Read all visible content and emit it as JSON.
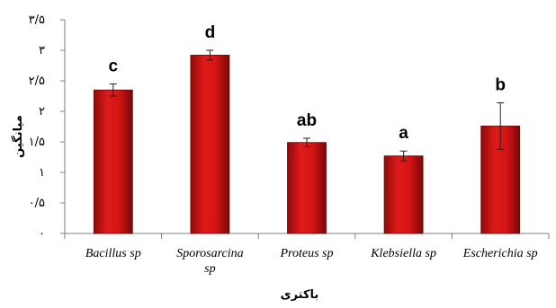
{
  "chart_data": {
    "type": "bar",
    "title": "",
    "xlabel": "باکتری",
    "ylabel": "میانگین",
    "ylim": [
      0,
      3.5
    ],
    "ytick_values": [
      0,
      0.5,
      1,
      1.5,
      2,
      2.5,
      3,
      3.5
    ],
    "ytick_labels": [
      "۰",
      "۰/۵",
      "۱",
      "۱/۵",
      "۲",
      "۲/۵",
      "۳",
      "۳/۵"
    ],
    "grid": false,
    "legend": "none",
    "bar_color": "#c81010",
    "categories": [
      [
        "Bacillus sp"
      ],
      [
        "Sporosarcina",
        "sp"
      ],
      [
        "Proteus sp"
      ],
      [
        "Klebsiella sp"
      ],
      [
        "Escherichia sp"
      ]
    ],
    "values": [
      2.35,
      2.92,
      1.49,
      1.27,
      1.76
    ],
    "errors": [
      0.1,
      0.08,
      0.07,
      0.08,
      0.38
    ],
    "significance_letters": [
      "c",
      "d",
      "ab",
      "a",
      "b"
    ]
  }
}
